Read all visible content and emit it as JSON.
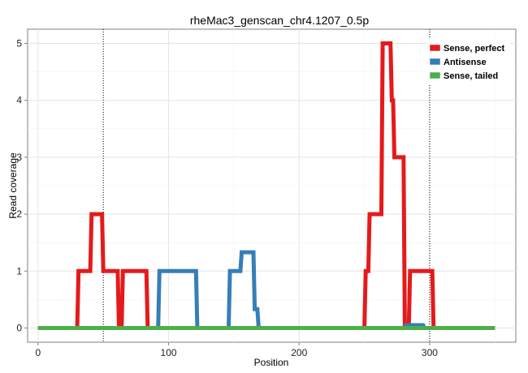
{
  "chart_data": {
    "type": "line",
    "title": "rheMac3_genscan_chr4.1207_0.5p",
    "xlabel": "Position",
    "ylabel": "Read coverage",
    "xlim": [
      -8,
      366
    ],
    "ylim": [
      -0.25,
      5.25
    ],
    "x_ticks": [
      0,
      100,
      200,
      300
    ],
    "y_ticks": [
      0,
      1,
      2,
      3,
      4,
      5
    ],
    "grid": true,
    "legend_position": "top-right",
    "vlines": [
      50,
      300
    ],
    "series": [
      {
        "name": "Sense, perfect",
        "color": "#e41a1c",
        "points": [
          [
            0,
            0
          ],
          [
            30,
            0
          ],
          [
            31,
            1
          ],
          [
            40,
            1
          ],
          [
            41,
            2
          ],
          [
            49,
            2
          ],
          [
            50,
            1
          ],
          [
            61,
            1
          ],
          [
            62,
            0
          ],
          [
            64,
            0
          ],
          [
            65,
            1
          ],
          [
            83,
            1
          ],
          [
            84,
            0
          ],
          [
            250,
            0
          ],
          [
            251,
            1
          ],
          [
            253,
            1
          ],
          [
            254,
            2
          ],
          [
            263,
            2
          ],
          [
            264,
            5
          ],
          [
            270,
            5
          ],
          [
            271,
            4
          ],
          [
            272,
            4
          ],
          [
            273,
            3
          ],
          [
            280,
            3
          ],
          [
            281,
            0
          ],
          [
            284,
            0
          ],
          [
            285,
            1
          ],
          [
            302,
            1
          ],
          [
            303,
            0
          ],
          [
            350,
            0
          ]
        ]
      },
      {
        "name": "Antisense",
        "color": "#377eb8",
        "points": [
          [
            0,
            0
          ],
          [
            92,
            0
          ],
          [
            93,
            1
          ],
          [
            121,
            1
          ],
          [
            122,
            0
          ],
          [
            146,
            0
          ],
          [
            147,
            1
          ],
          [
            155,
            1
          ],
          [
            156,
            1.33
          ],
          [
            165,
            1.33
          ],
          [
            166,
            0.33
          ],
          [
            168,
            0.33
          ],
          [
            169,
            0
          ],
          [
            281,
            0
          ],
          [
            282,
            0.05
          ],
          [
            295,
            0.05
          ],
          [
            296,
            0
          ],
          [
            350,
            0
          ]
        ]
      },
      {
        "name": "Sense, tailed",
        "color": "#4daf4a",
        "points": [
          [
            0,
            0
          ],
          [
            350,
            0
          ]
        ]
      }
    ]
  }
}
